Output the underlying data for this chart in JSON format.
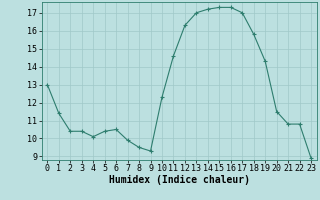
{
  "x": [
    0,
    1,
    2,
    3,
    4,
    5,
    6,
    7,
    8,
    9,
    10,
    11,
    12,
    13,
    14,
    15,
    16,
    17,
    18,
    19,
    20,
    21,
    22,
    23
  ],
  "y": [
    13.0,
    11.4,
    10.4,
    10.4,
    10.1,
    10.4,
    10.5,
    9.9,
    9.5,
    9.3,
    12.3,
    14.6,
    16.3,
    17.0,
    17.2,
    17.3,
    17.3,
    17.0,
    15.8,
    14.3,
    11.5,
    10.8,
    10.8,
    8.9
  ],
  "line_color": "#2e7d6e",
  "marker": "+",
  "marker_size": 3,
  "bg_color": "#bce0e0",
  "grid_color": "#a0c8c8",
  "xlabel": "Humidex (Indice chaleur)",
  "xlabel_fontsize": 7,
  "tick_fontsize": 6,
  "ylim": [
    8.8,
    17.6
  ],
  "xlim": [
    -0.5,
    23.5
  ],
  "yticks": [
    9,
    10,
    11,
    12,
    13,
    14,
    15,
    16,
    17
  ],
  "xticks": [
    0,
    1,
    2,
    3,
    4,
    5,
    6,
    7,
    8,
    9,
    10,
    11,
    12,
    13,
    14,
    15,
    16,
    17,
    18,
    19,
    20,
    21,
    22,
    23
  ]
}
